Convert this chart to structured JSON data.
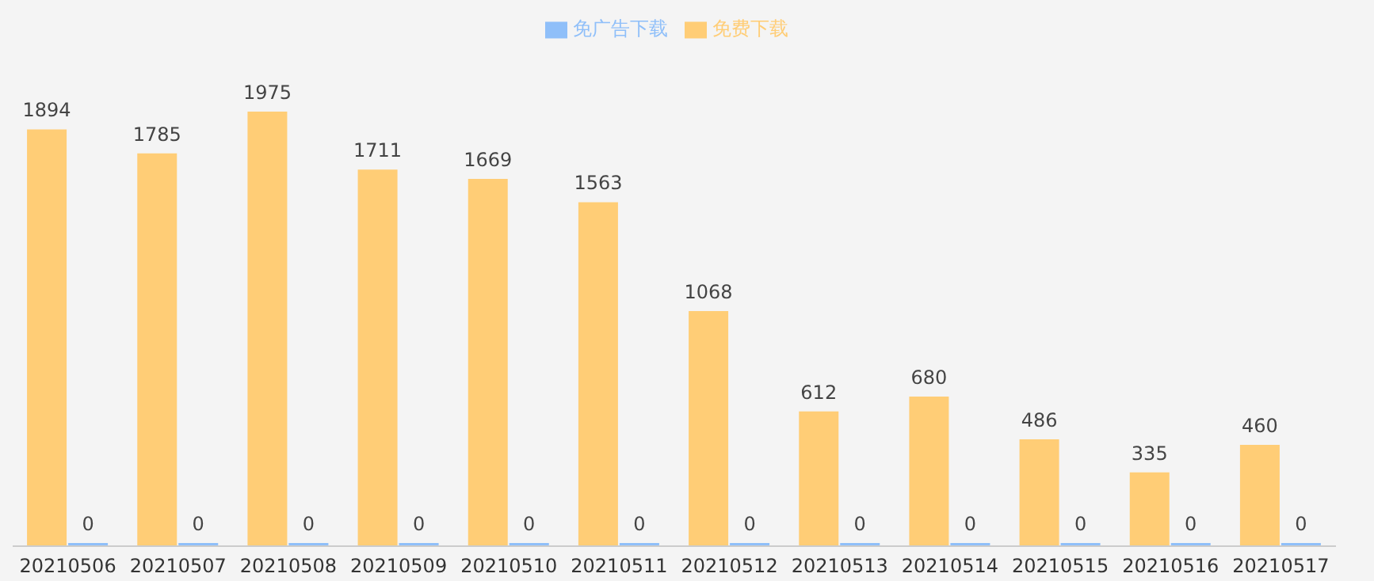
{
  "chart_data": {
    "type": "bar",
    "categories": [
      "20210506",
      "20210507",
      "20210508",
      "20210509",
      "20210510",
      "20210511",
      "20210512",
      "20210513",
      "20210514",
      "20210515",
      "20210516",
      "20210517"
    ],
    "series": [
      {
        "name": "免费下载",
        "color": "#ffcd76",
        "values": [
          1894,
          1785,
          1975,
          1711,
          1669,
          1563,
          1068,
          612,
          680,
          486,
          335,
          460
        ]
      },
      {
        "name": "免广告下载",
        "color": "#8fbff9",
        "values": [
          0,
          0,
          0,
          0,
          0,
          0,
          0,
          0,
          0,
          0,
          0,
          0
        ]
      }
    ],
    "data_labels": true,
    "legend": "top",
    "grid": false,
    "tick_labels": "x"
  }
}
